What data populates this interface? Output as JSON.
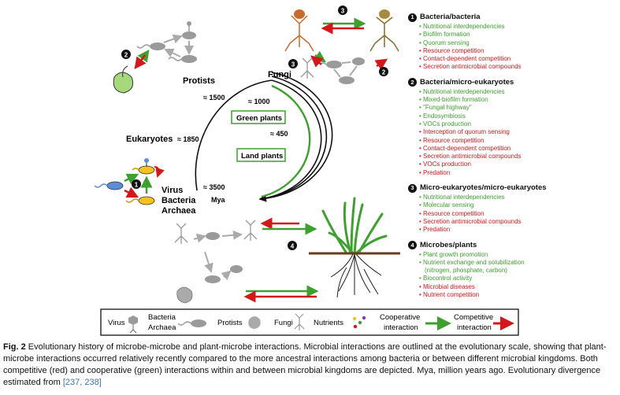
{
  "diagram": {
    "groups": {
      "protists": "Protists",
      "fungi": "Fungi",
      "eukaryotes": "Eukaryotes",
      "virus": "Virus",
      "bacteria": "Bacteria",
      "archaea": "Archaea",
      "green_plants": "Green plants",
      "land_plants": "Land plants"
    },
    "time_labels": {
      "t1500": "≈ 1500",
      "t1000": "≈ 1000",
      "t1850": "≈ 1850",
      "t450": "≈ 450",
      "t3500": "≈ 3500",
      "unit": "Mya"
    },
    "markers": [
      "1",
      "2",
      "3",
      "4"
    ]
  },
  "interactions": [
    {
      "number": "1",
      "title": "Bacteria/bacteria",
      "items": [
        {
          "text": "Nutritional interdependencies",
          "type": "cooperative"
        },
        {
          "text": "Biofilm formation",
          "type": "cooperative"
        },
        {
          "text": "Quorum sensing",
          "type": "cooperative"
        },
        {
          "text": "Resource competition",
          "type": "competitive"
        },
        {
          "text": "Contact-dependent competition",
          "type": "competitive"
        },
        {
          "text": "Secretion antimicrobial compounds",
          "type": "competitive"
        }
      ]
    },
    {
      "number": "2",
      "title": "Bacteria/micro-eukaryotes",
      "items": [
        {
          "text": "Nutritional interdependencies",
          "type": "cooperative"
        },
        {
          "text": "Mixed-biofilm formation",
          "type": "cooperative"
        },
        {
          "text": "\"Fungal highway\"",
          "type": "cooperative"
        },
        {
          "text": "Endosymbiosis",
          "type": "cooperative"
        },
        {
          "text": "VOCs production",
          "type": "cooperative"
        },
        {
          "text": "Interception of quorum sensing",
          "type": "competitive"
        },
        {
          "text": "Resource competition",
          "type": "competitive"
        },
        {
          "text": "Contact-dependent competition",
          "type": "competitive"
        },
        {
          "text": "Secretion antimicrobial compounds",
          "type": "competitive"
        },
        {
          "text": "VOCs production",
          "type": "competitive"
        },
        {
          "text": "Predation",
          "type": "competitive"
        }
      ]
    },
    {
      "number": "3",
      "title": "Micro-eukaryotes/micro-eukaryotes",
      "items": [
        {
          "text": "Nutritional interdependencies",
          "type": "cooperative"
        },
        {
          "text": "Molecular sensing",
          "type": "cooperative"
        },
        {
          "text": "Resource competition",
          "type": "competitive"
        },
        {
          "text": "Secretion antimicrobial compounds",
          "type": "competitive"
        },
        {
          "text": "Predation",
          "type": "competitive"
        }
      ]
    },
    {
      "number": "4",
      "title": "Microbes/plants",
      "items": [
        {
          "text": "Plant growth promotion",
          "type": "cooperative"
        },
        {
          "text": "Nutrient exchange and solubilization",
          "type": "cooperative"
        },
        {
          "text": "(nitrogen, phosphate, carbon)",
          "type": "continuation"
        },
        {
          "text": "Biocontrol activity",
          "type": "cooperative"
        },
        {
          "text": "Microbial diseases",
          "type": "competitive"
        },
        {
          "text": "Nutrient competition",
          "type": "competitive"
        }
      ]
    }
  ],
  "legend": {
    "virus": "Virus",
    "bacteria": "Bacteria",
    "archaea": "Archaea",
    "protists": "Protists",
    "fungi": "Fungi",
    "nutrients": "Nutrients",
    "cooperative_line1": "Cooperative",
    "cooperative_line2": "interaction",
    "competitive_line1": "Competitive",
    "competitive_line2": "interaction"
  },
  "caption": {
    "label": "Fig. 2",
    "text": " Evolutionary history of microbe-microbe and plant-microbe interactions. Microbial interactions are outlined at the evolutionary scale, showing that plant-microbe interactions occurred relatively recently compared to the more ancestral interactions among bacteria or between different microbial kingdoms. Both competitive (red) and cooperative (green) interactions within and between microbial kingdoms are depicted. Mya, million years ago. Evolutionary divergence estimated from ",
    "refs": "[237, 238]"
  },
  "colors": {
    "cooperative": "#3ea02e",
    "competitive": "#d2181b",
    "organism_gray": "#9a9a9a",
    "bacteria_yellow": "#f4c21e",
    "bacteria_blue": "#5b8ed6",
    "protist_green": "#a5d97c",
    "fungus_orange": "#c96a2c",
    "fungus_brown": "#8a6d2e"
  }
}
